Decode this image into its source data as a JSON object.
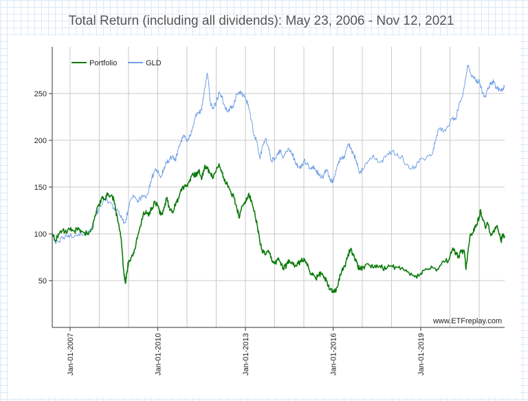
{
  "chart_data": {
    "type": "line",
    "title": "Total Return (including all dividends): May 23, 2006 - Nov 12, 2021",
    "xlabel": "",
    "ylabel": "",
    "x_range": [
      2006.39,
      2021.87
    ],
    "ylim": [
      0,
      300
    ],
    "y_ticks": [
      50,
      100,
      150,
      200,
      250
    ],
    "x_ticks": [
      {
        "label": "Jan-01-2007",
        "x": 2007.0
      },
      {
        "label": "Jan-01-2010",
        "x": 2010.0
      },
      {
        "label": "Jan-01-2013",
        "x": 2013.0
      },
      {
        "label": "Jan-01-2016",
        "x": 2016.0
      },
      {
        "label": "Jan-01-2019",
        "x": 2019.0
      }
    ],
    "vertical_grid_years": [
      2007,
      2008,
      2009,
      2010,
      2011,
      2012,
      2013,
      2014,
      2015,
      2016,
      2017,
      2018,
      2019,
      2020,
      2021
    ],
    "grid": true,
    "legend_position": "top-left",
    "credit": "www.ETFreplay.com",
    "series": [
      {
        "name": "Portfolio",
        "color": "#0a7a0a",
        "points": [
          [
            2006.39,
            100
          ],
          [
            2006.5,
            92
          ],
          [
            2006.6,
            100
          ],
          [
            2006.75,
            104
          ],
          [
            2006.9,
            102
          ],
          [
            2007.0,
            104
          ],
          [
            2007.15,
            103
          ],
          [
            2007.3,
            105
          ],
          [
            2007.45,
            102
          ],
          [
            2007.6,
            100
          ],
          [
            2007.75,
            105
          ],
          [
            2007.9,
            124
          ],
          [
            2008.0,
            130
          ],
          [
            2008.1,
            140
          ],
          [
            2008.2,
            137
          ],
          [
            2008.3,
            143
          ],
          [
            2008.45,
            140
          ],
          [
            2008.5,
            136
          ],
          [
            2008.55,
            127
          ],
          [
            2008.65,
            112
          ],
          [
            2008.75,
            95
          ],
          [
            2008.85,
            55
          ],
          [
            2008.9,
            48
          ],
          [
            2008.95,
            60
          ],
          [
            2009.0,
            70
          ],
          [
            2009.1,
            75
          ],
          [
            2009.2,
            83
          ],
          [
            2009.3,
            95
          ],
          [
            2009.4,
            108
          ],
          [
            2009.5,
            120
          ],
          [
            2009.6,
            125
          ],
          [
            2009.7,
            120
          ],
          [
            2009.8,
            128
          ],
          [
            2009.9,
            135
          ],
          [
            2010.0,
            130
          ],
          [
            2010.1,
            120
          ],
          [
            2010.2,
            125
          ],
          [
            2010.3,
            138
          ],
          [
            2010.4,
            128
          ],
          [
            2010.5,
            124
          ],
          [
            2010.6,
            130
          ],
          [
            2010.7,
            138
          ],
          [
            2010.8,
            148
          ],
          [
            2010.9,
            150
          ],
          [
            2011.0,
            152
          ],
          [
            2011.1,
            158
          ],
          [
            2011.2,
            165
          ],
          [
            2011.3,
            162
          ],
          [
            2011.4,
            168
          ],
          [
            2011.5,
            158
          ],
          [
            2011.6,
            172
          ],
          [
            2011.7,
            170
          ],
          [
            2011.8,
            165
          ],
          [
            2011.9,
            160
          ],
          [
            2012.0,
            168
          ],
          [
            2012.1,
            175
          ],
          [
            2012.2,
            165
          ],
          [
            2012.3,
            158
          ],
          [
            2012.4,
            150
          ],
          [
            2012.5,
            145
          ],
          [
            2012.6,
            140
          ],
          [
            2012.7,
            128
          ],
          [
            2012.8,
            118
          ],
          [
            2012.9,
            130
          ],
          [
            2013.0,
            135
          ],
          [
            2013.1,
            142
          ],
          [
            2013.2,
            136
          ],
          [
            2013.3,
            124
          ],
          [
            2013.4,
            110
          ],
          [
            2013.5,
            90
          ],
          [
            2013.6,
            80
          ],
          [
            2013.7,
            78
          ],
          [
            2013.8,
            80
          ],
          [
            2013.9,
            72
          ],
          [
            2014.0,
            68
          ],
          [
            2014.1,
            72
          ],
          [
            2014.2,
            70
          ],
          [
            2014.3,
            64
          ],
          [
            2014.4,
            66
          ],
          [
            2014.5,
            72
          ],
          [
            2014.6,
            70
          ],
          [
            2014.7,
            66
          ],
          [
            2014.8,
            68
          ],
          [
            2014.9,
            70
          ],
          [
            2015.0,
            74
          ],
          [
            2015.1,
            68
          ],
          [
            2015.2,
            60
          ],
          [
            2015.3,
            56
          ],
          [
            2015.4,
            52
          ],
          [
            2015.5,
            56
          ],
          [
            2015.6,
            57
          ],
          [
            2015.7,
            54
          ],
          [
            2015.8,
            48
          ],
          [
            2015.9,
            40
          ],
          [
            2016.0,
            40
          ],
          [
            2016.1,
            38
          ],
          [
            2016.2,
            52
          ],
          [
            2016.3,
            60
          ],
          [
            2016.4,
            66
          ],
          [
            2016.5,
            76
          ],
          [
            2016.6,
            84
          ],
          [
            2016.7,
            78
          ],
          [
            2016.8,
            70
          ],
          [
            2016.9,
            62
          ],
          [
            2017.0,
            64
          ],
          [
            2017.2,
            68
          ],
          [
            2017.4,
            64
          ],
          [
            2017.6,
            66
          ],
          [
            2017.8,
            62
          ],
          [
            2018.0,
            66
          ],
          [
            2018.2,
            64
          ],
          [
            2018.4,
            62
          ],
          [
            2018.6,
            58
          ],
          [
            2018.8,
            54
          ],
          [
            2019.0,
            58
          ],
          [
            2019.2,
            62
          ],
          [
            2019.4,
            64
          ],
          [
            2019.6,
            62
          ],
          [
            2019.8,
            70
          ],
          [
            2019.95,
            72
          ],
          [
            2020.1,
            85
          ],
          [
            2020.2,
            78
          ],
          [
            2020.3,
            76
          ],
          [
            2020.4,
            82
          ],
          [
            2020.5,
            80
          ],
          [
            2020.55,
            62
          ],
          [
            2020.6,
            78
          ],
          [
            2020.7,
            100
          ],
          [
            2020.8,
            102
          ],
          [
            2020.9,
            110
          ],
          [
            2021.0,
            118
          ],
          [
            2021.05,
            125
          ],
          [
            2021.1,
            118
          ],
          [
            2021.2,
            108
          ],
          [
            2021.3,
            110
          ],
          [
            2021.4,
            98
          ],
          [
            2021.5,
            104
          ],
          [
            2021.6,
            108
          ],
          [
            2021.7,
            100
          ],
          [
            2021.75,
            92
          ],
          [
            2021.8,
            98
          ],
          [
            2021.87,
            98
          ]
        ]
      },
      {
        "name": "GLD",
        "color": "#6f9ee6",
        "points": [
          [
            2006.39,
            100
          ],
          [
            2006.5,
            90
          ],
          [
            2006.6,
            92
          ],
          [
            2006.75,
            95
          ],
          [
            2006.9,
            97
          ],
          [
            2007.0,
            98
          ],
          [
            2007.2,
            99
          ],
          [
            2007.4,
            100
          ],
          [
            2007.6,
            100
          ],
          [
            2007.75,
            108
          ],
          [
            2007.9,
            122
          ],
          [
            2008.0,
            127
          ],
          [
            2008.2,
            137
          ],
          [
            2008.35,
            134
          ],
          [
            2008.5,
            128
          ],
          [
            2008.6,
            126
          ],
          [
            2008.7,
            120
          ],
          [
            2008.8,
            114
          ],
          [
            2008.9,
            112
          ],
          [
            2009.0,
            128
          ],
          [
            2009.1,
            138
          ],
          [
            2009.2,
            140
          ],
          [
            2009.3,
            134
          ],
          [
            2009.4,
            138
          ],
          [
            2009.5,
            140
          ],
          [
            2009.6,
            138
          ],
          [
            2009.7,
            148
          ],
          [
            2009.8,
            160
          ],
          [
            2009.9,
            168
          ],
          [
            2010.0,
            166
          ],
          [
            2010.1,
            160
          ],
          [
            2010.2,
            168
          ],
          [
            2010.3,
            176
          ],
          [
            2010.4,
            180
          ],
          [
            2010.5,
            182
          ],
          [
            2010.6,
            178
          ],
          [
            2010.7,
            190
          ],
          [
            2010.8,
            200
          ],
          [
            2010.9,
            205
          ],
          [
            2011.0,
            198
          ],
          [
            2011.1,
            204
          ],
          [
            2011.2,
            215
          ],
          [
            2011.3,
            228
          ],
          [
            2011.4,
            230
          ],
          [
            2011.5,
            232
          ],
          [
            2011.6,
            255
          ],
          [
            2011.7,
            272
          ],
          [
            2011.8,
            240
          ],
          [
            2011.9,
            235
          ],
          [
            2012.0,
            240
          ],
          [
            2012.1,
            252
          ],
          [
            2012.2,
            246
          ],
          [
            2012.3,
            236
          ],
          [
            2012.4,
            232
          ],
          [
            2012.5,
            235
          ],
          [
            2012.6,
            238
          ],
          [
            2012.7,
            250
          ],
          [
            2012.8,
            252
          ],
          [
            2012.9,
            248
          ],
          [
            2013.0,
            245
          ],
          [
            2013.1,
            238
          ],
          [
            2013.2,
            222
          ],
          [
            2013.3,
            205
          ],
          [
            2013.4,
            198
          ],
          [
            2013.5,
            180
          ],
          [
            2013.6,
            195
          ],
          [
            2013.7,
            202
          ],
          [
            2013.8,
            190
          ],
          [
            2013.9,
            178
          ],
          [
            2014.0,
            180
          ],
          [
            2014.1,
            186
          ],
          [
            2014.2,
            190
          ],
          [
            2014.3,
            182
          ],
          [
            2014.4,
            188
          ],
          [
            2014.5,
            190
          ],
          [
            2014.6,
            186
          ],
          [
            2014.7,
            178
          ],
          [
            2014.8,
            172
          ],
          [
            2014.9,
            170
          ],
          [
            2015.0,
            178
          ],
          [
            2015.1,
            175
          ],
          [
            2015.2,
            170
          ],
          [
            2015.3,
            172
          ],
          [
            2015.4,
            168
          ],
          [
            2015.5,
            165
          ],
          [
            2015.6,
            160
          ],
          [
            2015.7,
            164
          ],
          [
            2015.8,
            168
          ],
          [
            2015.9,
            158
          ],
          [
            2016.0,
            155
          ],
          [
            2016.1,
            168
          ],
          [
            2016.2,
            178
          ],
          [
            2016.3,
            180
          ],
          [
            2016.4,
            182
          ],
          [
            2016.5,
            195
          ],
          [
            2016.6,
            192
          ],
          [
            2016.7,
            185
          ],
          [
            2016.8,
            178
          ],
          [
            2016.9,
            165
          ],
          [
            2017.0,
            168
          ],
          [
            2017.2,
            178
          ],
          [
            2017.4,
            182
          ],
          [
            2017.6,
            176
          ],
          [
            2017.8,
            182
          ],
          [
            2018.0,
            188
          ],
          [
            2018.2,
            186
          ],
          [
            2018.4,
            180
          ],
          [
            2018.6,
            170
          ],
          [
            2018.8,
            172
          ],
          [
            2019.0,
            180
          ],
          [
            2019.2,
            182
          ],
          [
            2019.4,
            185
          ],
          [
            2019.5,
            200
          ],
          [
            2019.6,
            212
          ],
          [
            2019.8,
            210
          ],
          [
            2019.95,
            215
          ],
          [
            2020.1,
            225
          ],
          [
            2020.2,
            222
          ],
          [
            2020.3,
            238
          ],
          [
            2020.4,
            245
          ],
          [
            2020.5,
            258
          ],
          [
            2020.6,
            280
          ],
          [
            2020.7,
            272
          ],
          [
            2020.8,
            268
          ],
          [
            2020.9,
            262
          ],
          [
            2021.0,
            265
          ],
          [
            2021.1,
            250
          ],
          [
            2021.2,
            248
          ],
          [
            2021.3,
            255
          ],
          [
            2021.4,
            262
          ],
          [
            2021.5,
            262
          ],
          [
            2021.6,
            256
          ],
          [
            2021.7,
            254
          ],
          [
            2021.8,
            255
          ],
          [
            2021.87,
            258
          ]
        ]
      }
    ]
  }
}
